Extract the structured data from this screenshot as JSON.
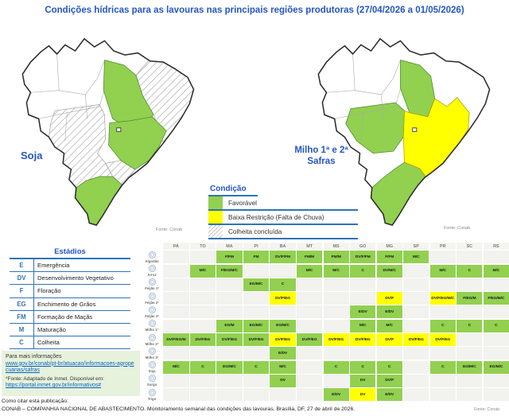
{
  "title": "Condições hídricas para as lavouras nas principais regiões produtoras (27/04/2026 a 01/05/2026)",
  "maps": {
    "soja": {
      "label": "Soja",
      "source": "Fonte: Conab"
    },
    "milho": {
      "label_line1": "Milho 1ª e 2ª",
      "label_line2": "Safras",
      "source": "Fonte: Conab"
    }
  },
  "legend": {
    "title": "Condição",
    "items": [
      {
        "label": "Favorável",
        "color": "#92D050"
      },
      {
        "label": "Baixa Restrição (Falta de Chuva)",
        "color": "#FFFF00"
      },
      {
        "label": "Colheita concluída",
        "color": "hatch"
      }
    ]
  },
  "stages": {
    "title": "Estádios",
    "items": [
      {
        "code": "E",
        "label": "Emergência"
      },
      {
        "code": "DV",
        "label": "Desenvolvimento Vegetativo"
      },
      {
        "code": "F",
        "label": "Floração"
      },
      {
        "code": "EG",
        "label": "Enchimento de Grãos"
      },
      {
        "code": "FM",
        "label": "Formação de Maçãs"
      },
      {
        "code": "M",
        "label": "Maturação"
      },
      {
        "code": "C",
        "label": "Colheita"
      }
    ]
  },
  "info_box": {
    "heading": "Para mais informações",
    "link1": "www.gov.br/conab/pt-br/atuacao/informacoes-agropecuarias/safras",
    "note": "*Fonte: Adaptado de Inmet. Disponível em:",
    "link2": "https://portal.inmet.gov.br/informativos#"
  },
  "citation": {
    "line1": "Como citar esta publicação:",
    "line2": "CONAB – COMPANHIA NACIONAL DE ABASTECIMENTO. Monitoramento semanal das condições das lavouras. Brasília, DF, 27 de abril de 2026.",
    "source": "Fonte: Conab"
  },
  "colors": {
    "favorable": "#92D050",
    "restriction": "#FFFF00",
    "empty_cell": "#F2F2EE",
    "accent_blue": "#2E74B5",
    "title_blue": "#2456C4"
  },
  "status_table": {
    "states": [
      "PA",
      "TO",
      "MA",
      "PI",
      "BA",
      "MT",
      "MS",
      "GO",
      "MG",
      "SP",
      "PR",
      "SC",
      "RS"
    ],
    "rows": [
      {
        "crop": "Algodão",
        "icon": "cotton-icon",
        "cells": {
          "MA": {
            "t": "F/FM",
            "s": "fav"
          },
          "PI": {
            "t": "FM",
            "s": "fav"
          },
          "BA": {
            "t": "DV/F/FM",
            "s": "fav"
          },
          "MT": {
            "t": "FM/M",
            "s": "fav"
          },
          "MS": {
            "t": "FM/M",
            "s": "fav"
          },
          "GO": {
            "t": "DV/F/FM",
            "s": "fav"
          },
          "MG": {
            "t": "F/FM",
            "s": "fav"
          },
          "SP": {
            "t": "M/C",
            "s": "fav"
          }
        }
      },
      {
        "crop": "Arroz",
        "icon": "rice-icon",
        "cells": {
          "TO": {
            "t": "M/C",
            "s": "fav"
          },
          "MA": {
            "t": "F/EG/M/C",
            "s": "fav"
          },
          "MT": {
            "t": "M/C",
            "s": "fav"
          },
          "MS": {
            "t": "M/C",
            "s": "fav"
          },
          "GO": {
            "t": "C",
            "s": "fav"
          },
          "MG": {
            "t": "DV/M/C",
            "s": "fav"
          },
          "PR": {
            "t": "M/C",
            "s": "fav"
          },
          "SC": {
            "t": "C",
            "s": "fav"
          },
          "RS": {
            "t": "M/C",
            "s": "fav"
          }
        }
      },
      {
        "crop": "Feijão 1ª",
        "icon": "bean-1-icon",
        "cells": {
          "PI": {
            "t": "EG/M/C",
            "s": "fav"
          },
          "BA": {
            "t": "C",
            "s": "fav"
          }
        }
      },
      {
        "crop": "Feijão 2ª",
        "icon": "bean-2-icon",
        "cells": {
          "BA": {
            "t": "DV/F/EG",
            "s": "restr"
          },
          "MG": {
            "t": "DV/F",
            "s": "restr"
          },
          "PR": {
            "t": "DV/F/EG/M/C",
            "s": "restr"
          },
          "SC": {
            "t": "F/EG/M",
            "s": "fav"
          },
          "RS": {
            "t": "F/EG/M/C",
            "s": "fav"
          }
        }
      },
      {
        "crop": "Feijão 3ª",
        "icon": "bean-3-icon",
        "cells": {
          "GO": {
            "t": "E/DV",
            "s": "fav"
          },
          "MG": {
            "t": "E/DV",
            "s": "fav"
          }
        }
      },
      {
        "crop": "Milho 1ª",
        "icon": "corn-1-icon",
        "cells": {
          "MA": {
            "t": "EG/M",
            "s": "fav"
          },
          "PI": {
            "t": "EG/M/C",
            "s": "fav"
          },
          "BA": {
            "t": "EG/M/C",
            "s": "fav"
          },
          "GO": {
            "t": "M/C",
            "s": "fav"
          },
          "MG": {
            "t": "M/C",
            "s": "fav"
          },
          "PR": {
            "t": "C",
            "s": "fav"
          },
          "SC": {
            "t": "C",
            "s": "fav"
          },
          "RS": {
            "t": "C",
            "s": "fav"
          }
        }
      },
      {
        "crop": "Milho 2ª",
        "icon": "corn-2-icon",
        "cells": {
          "PA": {
            "t": "DV/F/EG/M",
            "s": "fav"
          },
          "TO": {
            "t": "DV/F/EG",
            "s": "fav"
          },
          "MA": {
            "t": "DV/F/EG",
            "s": "fav"
          },
          "PI": {
            "t": "DV/F/EG",
            "s": "fav"
          },
          "BA": {
            "t": "DV/F/EG",
            "s": "restr"
          },
          "MT": {
            "t": "DV/F/EG",
            "s": "fav"
          },
          "MS": {
            "t": "DV/F/EG",
            "s": "restr"
          },
          "GO": {
            "t": "DV/F/EG",
            "s": "restr"
          },
          "MG": {
            "t": "DV/F",
            "s": "restr"
          },
          "SP": {
            "t": "DV/F/EG",
            "s": "restr"
          },
          "PR": {
            "t": "DV/F/EG",
            "s": "restr"
          }
        }
      },
      {
        "crop": "Milho 3ª",
        "icon": "corn-3-icon",
        "cells": {
          "BA": {
            "t": "E/DV",
            "s": "fav"
          }
        }
      },
      {
        "crop": "Soja",
        "icon": "soybean-icon",
        "cells": {
          "PA": {
            "t": "M/C",
            "s": "fav"
          },
          "TO": {
            "t": "C",
            "s": "fav"
          },
          "MA": {
            "t": "EG/M/C",
            "s": "fav"
          },
          "PI": {
            "t": "C",
            "s": "fav"
          },
          "BA": {
            "t": "M/C",
            "s": "fav"
          },
          "MS": {
            "t": "C",
            "s": "fav"
          },
          "GO": {
            "t": "C",
            "s": "fav"
          },
          "MG": {
            "t": "C",
            "s": "fav"
          },
          "PR": {
            "t": "C",
            "s": "fav"
          },
          "SC": {
            "t": "EG/M/C",
            "s": "fav"
          },
          "RS": {
            "t": "EG/M/C",
            "s": "fav"
          }
        }
      },
      {
        "crop": "Sorgo",
        "icon": "sorghum-icon",
        "cells": {
          "BA": {
            "t": "DV",
            "s": "fav"
          },
          "GO": {
            "t": "DV",
            "s": "fav"
          },
          "MG": {
            "t": "DV/F",
            "s": "fav"
          }
        }
      },
      {
        "crop": "Trigo",
        "icon": "wheat-icon",
        "cells": {
          "MS": {
            "t": "E/DV",
            "s": "fav"
          },
          "GO": {
            "t": "DV",
            "s": "restr"
          },
          "MG": {
            "t": "E/DV",
            "s": "fav"
          }
        }
      }
    ]
  }
}
